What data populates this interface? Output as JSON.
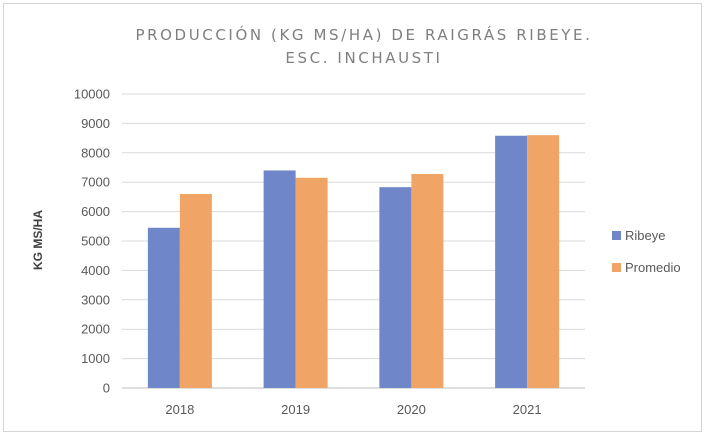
{
  "chart_data": {
    "type": "bar",
    "title_lines": [
      "PRODUCCIÓN (KG MS/HA) DE RAIGRÁS RIBEYE.",
      "ESC. INCHAUSTI"
    ],
    "xlabel": "",
    "ylabel": "KG MS/HA",
    "categories": [
      "2018",
      "2019",
      "2020",
      "2021"
    ],
    "series": [
      {
        "name": "Ribeye",
        "color": "#6f87c8",
        "values": [
          5450,
          7400,
          6830,
          8580
        ]
      },
      {
        "name": "Promedio",
        "color": "#f0a566",
        "values": [
          6600,
          7150,
          7280,
          8600
        ]
      }
    ],
    "ylim": [
      0,
      10000
    ],
    "yticks": [
      "0",
      "1000",
      "2000",
      "3000",
      "4000",
      "5000",
      "6000",
      "7000",
      "8000",
      "9000",
      "10000"
    ],
    "grid": true,
    "legend_position": "right"
  }
}
